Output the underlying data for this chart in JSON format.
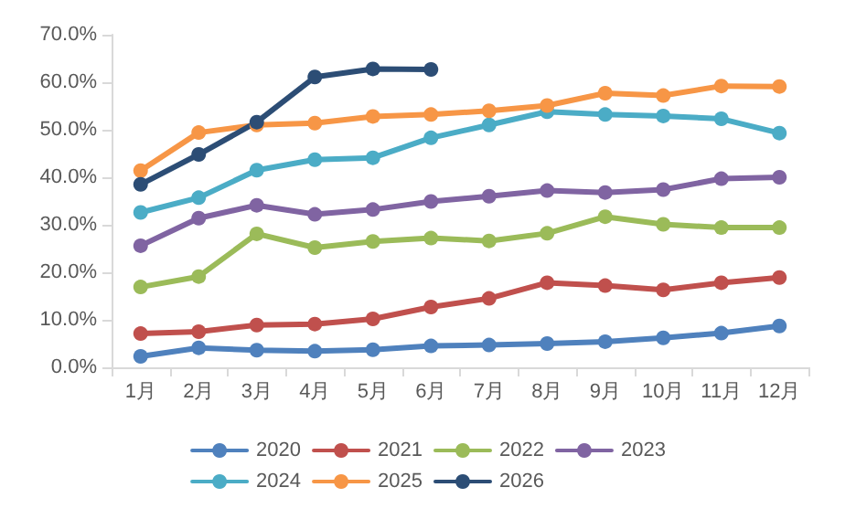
{
  "chart_data": {
    "type": "line",
    "categories": [
      "1月",
      "2月",
      "3月",
      "4月",
      "5月",
      "6月",
      "7月",
      "8月",
      "9月",
      "10月",
      "11月",
      "12月"
    ],
    "series": [
      {
        "name": "2020",
        "color": "#4f81bd",
        "values": [
          2.3,
          4.1,
          3.6,
          3.4,
          3.7,
          4.5,
          4.7,
          5.0,
          5.4,
          6.2,
          7.2,
          8.7
        ]
      },
      {
        "name": "2021",
        "color": "#c0504d",
        "values": [
          7.1,
          7.5,
          8.9,
          9.1,
          10.2,
          12.7,
          14.5,
          17.8,
          17.2,
          16.3,
          17.8,
          18.9
        ]
      },
      {
        "name": "2022",
        "color": "#9bbb59",
        "values": [
          16.9,
          19.1,
          28.1,
          25.2,
          26.5,
          27.2,
          26.6,
          28.2,
          31.7,
          30.1,
          29.4,
          29.4
        ]
      },
      {
        "name": "2023",
        "color": "#8064a2",
        "values": [
          25.6,
          31.4,
          34.1,
          32.2,
          33.2,
          34.9,
          36.0,
          37.2,
          36.8,
          37.4,
          39.7,
          40.0
        ]
      },
      {
        "name": "2024",
        "color": "#4bacc6",
        "values": [
          32.6,
          35.7,
          41.5,
          43.7,
          44.1,
          48.3,
          51.0,
          53.8,
          53.2,
          52.9,
          52.3,
          49.3
        ]
      },
      {
        "name": "2025",
        "color": "#f79646",
        "values": [
          41.4,
          49.4,
          51.0,
          51.4,
          52.8,
          53.2,
          54.0,
          55.1,
          57.7,
          57.2,
          59.2,
          59.1
        ]
      },
      {
        "name": "2026",
        "color": "#2c4d75",
        "values": [
          38.5,
          44.8,
          51.6,
          61.1,
          62.8,
          62.7,
          null,
          null,
          null,
          null,
          null,
          null
        ]
      }
    ],
    "ylim": [
      0,
      70
    ],
    "yticks": [
      {
        "value": 0,
        "label": "0.0%"
      },
      {
        "value": 10,
        "label": "10.0%"
      },
      {
        "value": 20,
        "label": "20.0%"
      },
      {
        "value": 30,
        "label": "30.0%"
      },
      {
        "value": 40,
        "label": "40.0%"
      },
      {
        "value": 50,
        "label": "50.0%"
      },
      {
        "value": 60,
        "label": "60.0%"
      },
      {
        "value": 70,
        "label": "70.0%"
      }
    ],
    "grid": false,
    "legend": "bottom",
    "marker": "circle",
    "line_style": "solid"
  }
}
